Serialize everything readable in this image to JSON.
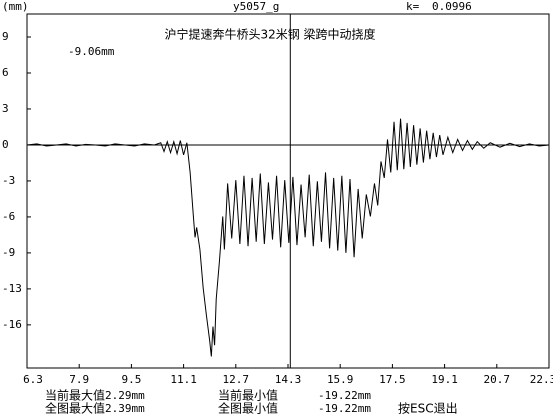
{
  "header": {
    "unit": "(mm)",
    "name": "y5057_g",
    "k_label": "k=",
    "k_value": "0.0996"
  },
  "chart_data": {
    "type": "line",
    "title": "沪宁提速奔牛桥头32米钢 梁跨中动挠度",
    "annotation": "-9.06mm",
    "color": "#000000",
    "cursor_x": 14.37,
    "xlim": [
      6.3,
      22.3
    ],
    "xticks": [
      6.3,
      7.9,
      9.5,
      11.1,
      12.7,
      14.3,
      15.9,
      17.5,
      19.1,
      20.7,
      22.3
    ],
    "ylim": [
      -20.27,
      11.9
    ],
    "yticks": [
      {
        "value": 9.81,
        "label": "9"
      },
      {
        "value": 6.54,
        "label": "6"
      },
      {
        "value": 3.27,
        "label": "3"
      },
      0,
      {
        "value": -3.27,
        "label": "-3"
      },
      {
        "value": -6.54,
        "label": "-6"
      },
      {
        "value": -9.81,
        "label": "-9"
      },
      {
        "value": -13.08,
        "label": "-13"
      },
      {
        "value": -16.35,
        "label": "-16"
      }
    ],
    "x": [
      6.3,
      6.6,
      6.9,
      7.2,
      7.5,
      7.8,
      8.1,
      8.4,
      8.7,
      9.0,
      9.3,
      9.6,
      9.9,
      10.2,
      10.4,
      10.5,
      10.6,
      10.7,
      10.8,
      10.9,
      11.0,
      11.1,
      11.2,
      11.3,
      11.4,
      11.45,
      11.5,
      11.6,
      11.7,
      11.8,
      11.9,
      11.95,
      12.0,
      12.05,
      12.1,
      12.2,
      12.3,
      12.35,
      12.45,
      12.575,
      12.7,
      12.825,
      12.95,
      13.075,
      13.2,
      13.325,
      13.45,
      13.575,
      13.7,
      13.825,
      13.95,
      14.075,
      14.2,
      14.325,
      14.45,
      14.575,
      14.7,
      14.825,
      14.95,
      15.075,
      15.2,
      15.325,
      15.45,
      15.575,
      15.7,
      15.825,
      15.95,
      16.075,
      16.2,
      16.325,
      16.45,
      16.575,
      16.7,
      16.825,
      16.95,
      17.05,
      17.15,
      17.25,
      17.35,
      17.45,
      17.55,
      17.65,
      17.75,
      17.85,
      17.95,
      18.05,
      18.15,
      18.25,
      18.35,
      18.45,
      18.55,
      18.65,
      18.75,
      18.85,
      18.95,
      19.05,
      19.2,
      19.35,
      19.5,
      19.65,
      19.8,
      19.95,
      20.1,
      20.3,
      20.5,
      20.8,
      21.1,
      21.4,
      21.7,
      22.0,
      22.3
    ],
    "values": [
      0,
      0.1,
      -0.1,
      0,
      0.1,
      -0.1,
      0.05,
      0,
      -0.1,
      0.1,
      0,
      -0.1,
      0.1,
      0,
      0.2,
      -0.6,
      0.3,
      -0.7,
      0.3,
      -0.8,
      0.4,
      -0.9,
      0.2,
      -2.5,
      -6.5,
      -8.4,
      -7.5,
      -9.5,
      -13,
      -15.5,
      -17.8,
      -19.22,
      -16.5,
      -18.2,
      -14,
      -10.5,
      -6.5,
      -9.5,
      -3.5,
      -8.5,
      -3.2,
      -9,
      -2.8,
      -9.2,
      -3,
      -8.8,
      -2.6,
      -9,
      -3.4,
      -8.6,
      -2.8,
      -9.3,
      -3.2,
      -8.9,
      -2.9,
      -9.1,
      -3.6,
      -8.4,
      -2.7,
      -9.2,
      -3.3,
      -8.8,
      -2.5,
      -9.4,
      -3,
      -9.6,
      -2.8,
      -9.8,
      -3.1,
      -10.2,
      -4,
      -8.5,
      -4.5,
      -6.5,
      -3.5,
      -5.5,
      -1.5,
      -3,
      0.5,
      -2.5,
      2.1,
      -2.3,
      2.39,
      -2.2,
      2,
      -2,
      1.8,
      -1.8,
      1.5,
      -1.6,
      1.3,
      -1.3,
      1.1,
      -1.1,
      0.9,
      -0.9,
      0.7,
      -0.7,
      0.5,
      -0.5,
      0.4,
      -0.4,
      0.3,
      -0.3,
      0.2,
      -0.2,
      0.15,
      -0.15,
      0.1,
      -0.1,
      0
    ]
  },
  "footer": {
    "row1": {
      "max_label": "当前最大值",
      "max_value": "2.29mm",
      "min_label": "当前最小值",
      "min_value": "-19.22mm"
    },
    "row2": {
      "max_label": "全图最大值",
      "max_value": "2.39mm",
      "min_label": "全图最小值",
      "min_value": "-19.22mm",
      "exit": "按ESC退出"
    }
  }
}
